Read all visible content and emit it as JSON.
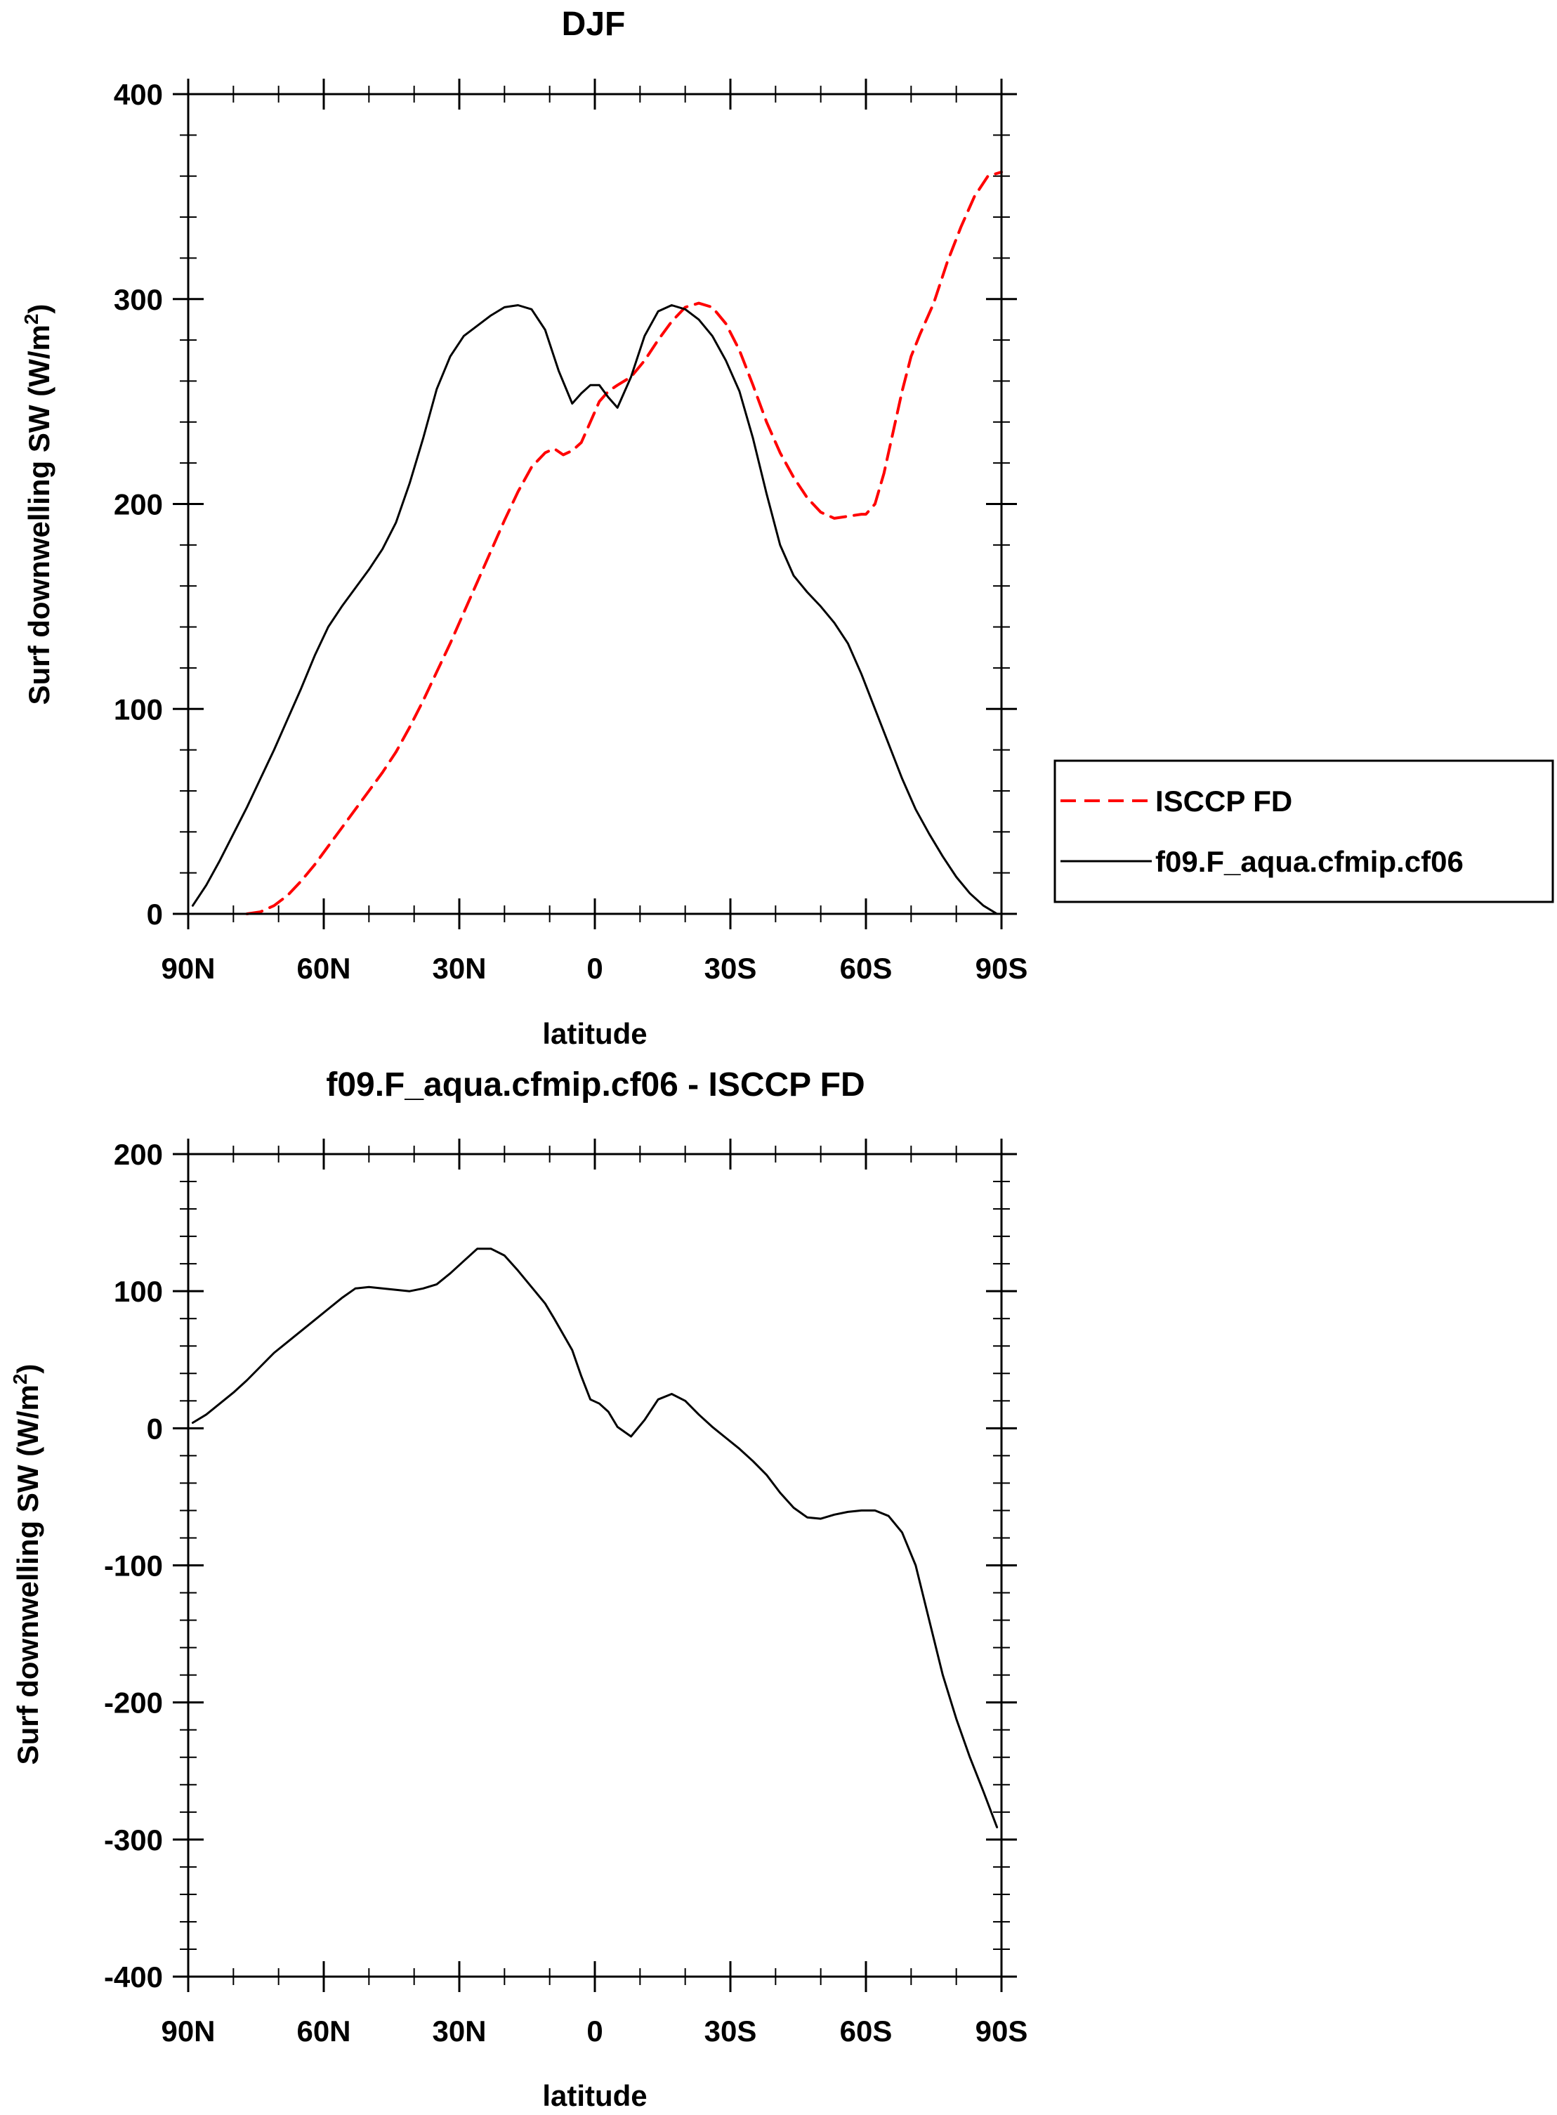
{
  "chart_data": [
    {
      "type": "line",
      "title": "DJF",
      "xlabel": "latitude",
      "ylabel": "Surf downwelling SW (W/m",
      "ylabel_sup": "2",
      "ylabel_close": ")",
      "xlim": [
        -90,
        90
      ],
      "ylim": [
        0,
        400
      ],
      "xticks": [
        -90,
        -60,
        -30,
        0,
        30,
        60,
        90
      ],
      "xtick_labels": [
        "90N",
        "60N",
        "30N",
        "0",
        "30S",
        "60S",
        "90S"
      ],
      "yticks": [
        0,
        100,
        200,
        300,
        400
      ],
      "ytick_labels": [
        "0",
        "100",
        "200",
        "300",
        "400"
      ],
      "legend": {
        "position": "right"
      },
      "series": [
        {
          "name": "ISCCP FD",
          "color": "#ff0000",
          "dash": "dashed",
          "x": [
            -77,
            -74,
            -71,
            -68,
            -65,
            -62,
            -59,
            -56,
            -53,
            -50,
            -47,
            -44,
            -41,
            -38,
            -35,
            -32,
            -29,
            -26,
            -23,
            -20,
            -17,
            -14,
            -11,
            -9,
            -7,
            -5,
            -3,
            -1,
            1,
            3,
            5,
            8,
            11,
            14,
            17,
            20,
            23,
            26,
            29,
            32,
            35,
            38,
            41,
            44,
            47,
            50,
            53,
            56,
            59,
            60,
            62,
            64,
            66,
            68,
            70,
            72,
            75,
            78,
            81,
            84,
            87,
            90
          ],
          "y": [
            0,
            1,
            4,
            9,
            16,
            24,
            33,
            42,
            51,
            60,
            69,
            79,
            91,
            104,
            118,
            132,
            147,
            162,
            177,
            192,
            206,
            218,
            225,
            227,
            224,
            226,
            230,
            240,
            250,
            255,
            258,
            262,
            270,
            280,
            289,
            296,
            298,
            296,
            288,
            275,
            258,
            240,
            225,
            213,
            203,
            196,
            193,
            194,
            195,
            195,
            200,
            215,
            235,
            255,
            272,
            283,
            298,
            318,
            335,
            350,
            360,
            362
          ]
        },
        {
          "name": "f09.F_aqua.cfmip.cf06",
          "color": "#000000",
          "dash": "solid",
          "x": [
            -89,
            -86,
            -83,
            -80,
            -77,
            -74,
            -71,
            -68,
            -65,
            -62,
            -59,
            -56,
            -53,
            -50,
            -47,
            -44,
            -41,
            -38,
            -35,
            -32,
            -29,
            -26,
            -23,
            -20,
            -17,
            -14,
            -11,
            -8,
            -5,
            -3,
            -1,
            1,
            3,
            5,
            8,
            11,
            14,
            17,
            20,
            23,
            26,
            29,
            32,
            35,
            38,
            41,
            44,
            47,
            50,
            53,
            56,
            59,
            62,
            65,
            68,
            71,
            74,
            77,
            80,
            83,
            86,
            89
          ],
          "y": [
            4,
            14,
            26,
            39,
            52,
            66,
            80,
            95,
            110,
            126,
            140,
            150,
            159,
            168,
            178,
            191,
            210,
            232,
            256,
            272,
            282,
            287,
            292,
            296,
            297,
            295,
            285,
            265,
            249,
            254,
            258,
            258,
            252,
            247,
            262,
            282,
            294,
            297,
            295,
            290,
            282,
            270,
            255,
            232,
            205,
            180,
            165,
            157,
            150,
            142,
            132,
            117,
            100,
            83,
            66,
            51,
            39,
            28,
            18,
            10,
            4,
            0
          ]
        }
      ]
    },
    {
      "type": "line",
      "title": "f09.F_aqua.cfmip.cf06 - ISCCP FD",
      "xlabel": "latitude",
      "ylabel": "Surf downwelling SW (W/m",
      "ylabel_sup": "2",
      "ylabel_close": ")",
      "xlim": [
        -90,
        90
      ],
      "ylim": [
        -400,
        200
      ],
      "xticks": [
        -90,
        -60,
        -30,
        0,
        30,
        60,
        90
      ],
      "xtick_labels": [
        "90N",
        "60N",
        "30N",
        "0",
        "30S",
        "60S",
        "90S"
      ],
      "yticks": [
        -400,
        -300,
        -200,
        -100,
        0,
        100,
        200
      ],
      "ytick_labels": [
        "-400",
        "-300",
        "-200",
        "-100",
        "0",
        "100",
        "200"
      ],
      "series": [
        {
          "name": "f09.F_aqua.cfmip.cf06 - ISCCP FD",
          "color": "#000000",
          "dash": "solid",
          "x": [
            -89,
            -86,
            -83,
            -80,
            -77,
            -74,
            -71,
            -68,
            -65,
            -62,
            -59,
            -56,
            -53,
            -50,
            -47,
            -44,
            -41,
            -38,
            -35,
            -32,
            -29,
            -26,
            -23,
            -20,
            -17,
            -14,
            -11,
            -9,
            -5,
            -3,
            -1,
            1,
            3,
            5,
            8,
            11,
            14,
            17,
            20,
            23,
            26,
            29,
            32,
            35,
            38,
            41,
            44,
            47,
            50,
            53,
            56,
            59,
            62,
            65,
            68,
            71,
            74,
            77,
            80,
            83,
            86,
            89
          ],
          "y": [
            4,
            10,
            18,
            26,
            35,
            45,
            55,
            63,
            71,
            79,
            87,
            95,
            102,
            103,
            102,
            101,
            100,
            102,
            105,
            113,
            122,
            131,
            131,
            126,
            115,
            103,
            91,
            80,
            57,
            38,
            21,
            18,
            12,
            1,
            -6,
            6,
            21,
            25,
            20,
            10,
            1,
            -7,
            -15,
            -24,
            -34,
            -47,
            -58,
            -65,
            -66,
            -63,
            -61,
            -60,
            -60,
            -64,
            -76,
            -100,
            -140,
            -180,
            -212,
            -240,
            -265,
            -291
          ]
        }
      ]
    }
  ]
}
